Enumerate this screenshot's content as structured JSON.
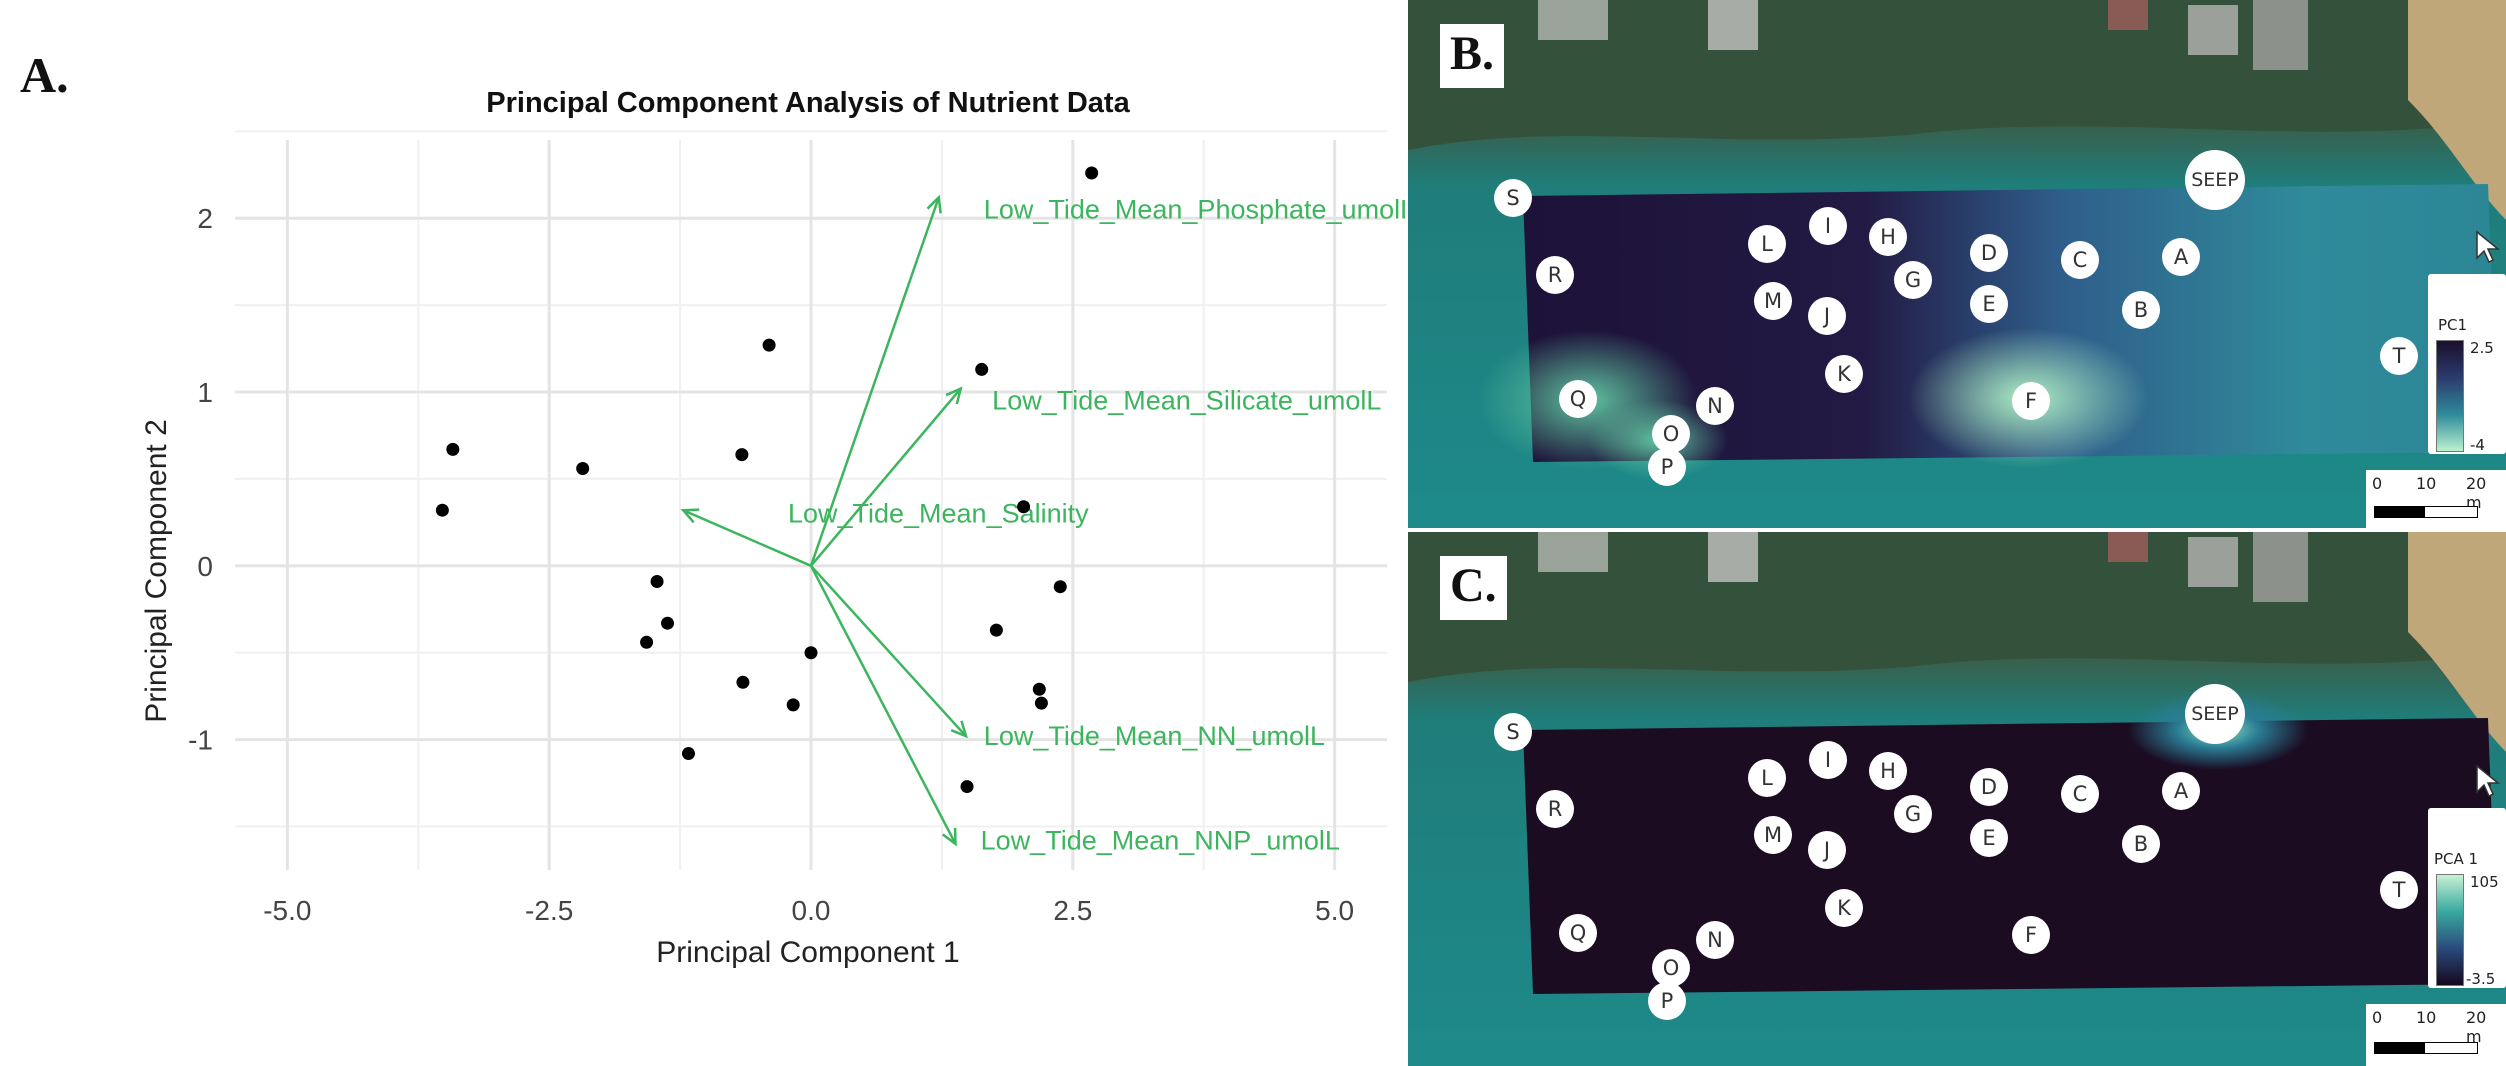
{
  "panel_labels": {
    "a": "A.",
    "b": "B.",
    "c": "C."
  },
  "chart_data": {
    "type": "scatter",
    "title": "Principal Component Analysis of Nutrient Data",
    "xlabel": "Principal Component 1",
    "ylabel": "Principal Component 2",
    "xlim": [
      -5.5,
      5.5
    ],
    "ylim": [
      -1.75,
      2.45
    ],
    "x_ticks": [
      -5.0,
      -2.5,
      0.0,
      2.5,
      5.0
    ],
    "x_tick_labels": [
      "-5.0",
      "-2.5",
      "0.0",
      "2.5",
      "5.0"
    ],
    "y_ticks": [
      -1,
      0,
      1,
      2
    ],
    "y_tick_labels": [
      "-1",
      "0",
      "1",
      "2"
    ],
    "grid": true,
    "point_color": "#000000",
    "arrow_color": "#3cb55e",
    "points": [
      {
        "x": 2.68,
        "y": 2.26
      },
      {
        "x": -0.4,
        "y": 1.27
      },
      {
        "x": 1.63,
        "y": 1.13
      },
      {
        "x": -3.42,
        "y": 0.67
      },
      {
        "x": -2.18,
        "y": 0.56
      },
      {
        "x": -0.66,
        "y": 0.64
      },
      {
        "x": -3.52,
        "y": 0.32
      },
      {
        "x": 2.03,
        "y": 0.34
      },
      {
        "x": -1.47,
        "y": -0.09
      },
      {
        "x": -1.37,
        "y": -0.33
      },
      {
        "x": -1.57,
        "y": -0.44
      },
      {
        "x": 2.38,
        "y": -0.12
      },
      {
        "x": 1.77,
        "y": -0.37
      },
      {
        "x": 0.0,
        "y": -0.5
      },
      {
        "x": -0.65,
        "y": -0.67
      },
      {
        "x": -0.17,
        "y": -0.8
      },
      {
        "x": 2.18,
        "y": -0.71
      },
      {
        "x": 2.2,
        "y": -0.79
      },
      {
        "x": -1.17,
        "y": -1.08
      },
      {
        "x": 1.49,
        "y": -1.27
      }
    ],
    "loadings": [
      {
        "label": "Low_Tide_Mean_Phosphate_umolL",
        "x": 1.22,
        "y": 2.12,
        "lx": 1.65,
        "ly": 2.05
      },
      {
        "label": "Low_Tide_Mean_Silicate_umolL",
        "x": 1.43,
        "y": 1.02,
        "lx": 1.73,
        "ly": 0.95
      },
      {
        "label": "Low_Tide_Mean_Salinity",
        "x": -1.22,
        "y": 0.32,
        "lx": -0.22,
        "ly": 0.3
      },
      {
        "label": "Low_Tide_Mean_NN_umolL",
        "x": 1.48,
        "y": -0.98,
        "lx": 1.65,
        "ly": -0.98
      },
      {
        "label": "Low_Tide_Mean_NNP_umolL",
        "x": 1.38,
        "y": -1.6,
        "lx": 1.62,
        "ly": -1.58
      }
    ]
  },
  "maps": {
    "b": {
      "legend_title": "PC1",
      "legend_max": "2.5",
      "legend_min": "-4",
      "scale_labels": [
        "0",
        "10",
        "20 m"
      ],
      "gradient_top": "#1a0f2e",
      "gradient_bottom": "#b9f2cf"
    },
    "c": {
      "legend_title": "PCA 1",
      "legend_max": "105",
      "legend_min": "-3.5",
      "scale_labels": [
        "0",
        "10",
        "20 m"
      ],
      "gradient_top": "#c6f1d4",
      "gradient_bottom": "#16081f"
    }
  },
  "sites": {
    "S": "S",
    "R": "R",
    "L": "L",
    "I": "I",
    "H": "H",
    "D": "D",
    "C": "C",
    "A": "A",
    "M": "M",
    "J": "J",
    "G": "G",
    "E": "E",
    "B": "B",
    "K": "K",
    "F": "F",
    "Q": "Q",
    "N": "N",
    "O": "O",
    "P": "P",
    "T": "T",
    "SEEP": "SEEP"
  }
}
